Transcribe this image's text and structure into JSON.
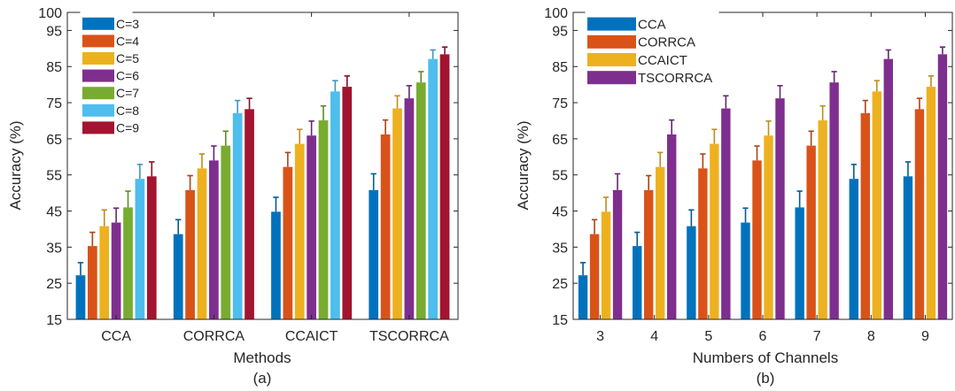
{
  "chart_data": [
    {
      "type": "bar",
      "panel_label": "(a)",
      "xlabel": "Methods",
      "ylabel": "Accuracy (%)",
      "ylim": [
        15,
        100
      ],
      "yticks": [
        15,
        25,
        35,
        45,
        55,
        65,
        75,
        85,
        95,
        100
      ],
      "grid": false,
      "legend_position": "top-left",
      "error_bars": true,
      "categories": [
        "CCA",
        "CORRCA",
        "CCAICT",
        "TSCORRCA"
      ],
      "series": [
        {
          "name": "C=3",
          "color": "#0072BD",
          "values": [
            27.2,
            38.6,
            44.8,
            50.8
          ],
          "errors": [
            3.5,
            4.0,
            4.0,
            4.5
          ]
        },
        {
          "name": "C=4",
          "color": "#D95319",
          "values": [
            35.3,
            50.8,
            57.2,
            66.2
          ],
          "errors": [
            3.8,
            4.0,
            4.0,
            4.0
          ]
        },
        {
          "name": "C=5",
          "color": "#EDB120",
          "values": [
            40.8,
            56.8,
            63.6,
            73.4
          ],
          "errors": [
            4.5,
            4.0,
            4.0,
            3.5
          ]
        },
        {
          "name": "C=6",
          "color": "#7E2F8E",
          "values": [
            41.8,
            59.0,
            65.9,
            76.2
          ],
          "errors": [
            4.0,
            4.0,
            4.0,
            3.5
          ]
        },
        {
          "name": "C=7",
          "color": "#77AC30",
          "values": [
            46.0,
            63.1,
            70.1,
            80.6
          ],
          "errors": [
            4.5,
            4.0,
            4.0,
            3.0
          ]
        },
        {
          "name": "C=8",
          "color": "#4DBEEE",
          "values": [
            53.9,
            72.1,
            78.1,
            87.1
          ],
          "errors": [
            4.0,
            3.5,
            3.0,
            2.5
          ]
        },
        {
          "name": "C=9",
          "color": "#A2142F",
          "values": [
            54.6,
            73.2,
            79.4,
            88.4
          ],
          "errors": [
            4.0,
            3.0,
            3.0,
            2.0
          ]
        }
      ]
    },
    {
      "type": "bar",
      "panel_label": "(b)",
      "xlabel": "Numbers of Channels",
      "ylabel": "Accuracy (%)",
      "ylim": [
        15,
        100
      ],
      "yticks": [
        15,
        25,
        35,
        45,
        55,
        65,
        75,
        85,
        95,
        100
      ],
      "grid": false,
      "legend_position": "top-left",
      "error_bars": true,
      "categories": [
        "3",
        "4",
        "5",
        "6",
        "7",
        "8",
        "9"
      ],
      "series": [
        {
          "name": "CCA",
          "color": "#0072BD",
          "values": [
            27.2,
            35.3,
            40.8,
            41.8,
            46.0,
            53.9,
            54.6
          ],
          "errors": [
            3.5,
            3.8,
            4.5,
            4.0,
            4.5,
            4.0,
            4.0
          ]
        },
        {
          "name": "CORRCA",
          "color": "#D95319",
          "values": [
            38.6,
            50.8,
            56.8,
            59.0,
            63.1,
            72.1,
            73.2
          ],
          "errors": [
            4.0,
            4.0,
            4.0,
            4.0,
            4.0,
            3.5,
            3.0
          ]
        },
        {
          "name": "CCAICT",
          "color": "#EDB120",
          "values": [
            44.8,
            57.2,
            63.6,
            65.9,
            70.1,
            78.1,
            79.4
          ],
          "errors": [
            4.0,
            4.0,
            4.0,
            4.0,
            4.0,
            3.0,
            3.0
          ]
        },
        {
          "name": "TSCORRCA",
          "color": "#7E2F8E",
          "values": [
            50.8,
            66.2,
            73.4,
            76.2,
            80.6,
            87.1,
            88.4
          ],
          "errors": [
            4.5,
            4.0,
            3.5,
            3.5,
            3.0,
            2.5,
            2.0
          ]
        }
      ]
    }
  ]
}
